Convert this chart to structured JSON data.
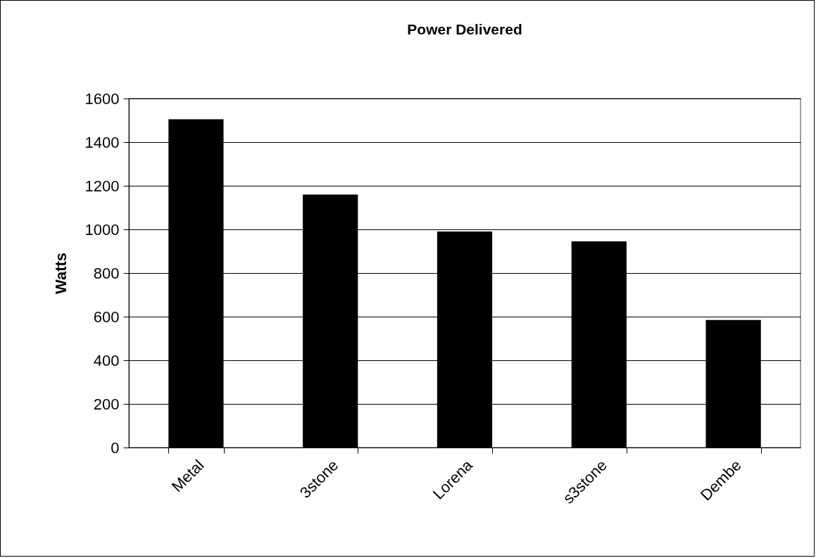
{
  "chart_data": {
    "type": "bar",
    "title": "Power Delivered",
    "ylabel": "Watts",
    "categories": [
      "Metal",
      "3stone",
      "Lorena",
      "s3stone",
      "Dembe"
    ],
    "values": [
      1505,
      1160,
      990,
      945,
      585
    ],
    "color": "#000000",
    "ylim": [
      0,
      1600
    ],
    "yticks": [
      0,
      200,
      400,
      600,
      800,
      1000,
      1200,
      1400,
      1600
    ],
    "grid": "y"
  }
}
